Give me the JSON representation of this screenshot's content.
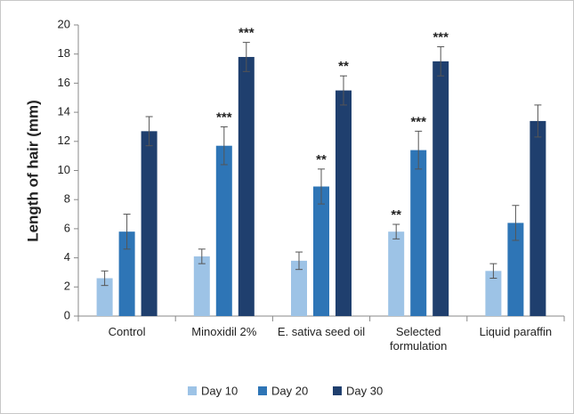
{
  "chart_data": {
    "type": "bar",
    "y_label": "Length of hair (mm)",
    "categories": [
      "Control",
      "Minoxidil 2%",
      "E. sativa seed oil",
      "Selected formulation",
      "Liquid paraffin"
    ],
    "series": [
      {
        "name": "Day 10",
        "color": "#9dc3e6",
        "values": [
          2.6,
          4.1,
          3.8,
          5.8,
          3.1
        ],
        "errors": [
          0.5,
          0.5,
          0.6,
          0.5,
          0.5
        ],
        "annotations": [
          null,
          null,
          null,
          "**",
          null
        ]
      },
      {
        "name": "Day 20",
        "color": "#2e75b6",
        "values": [
          5.8,
          11.7,
          8.9,
          11.4,
          6.4
        ],
        "errors": [
          1.2,
          1.3,
          1.2,
          1.3,
          1.2
        ],
        "annotations": [
          null,
          "***",
          "**",
          "***",
          null
        ]
      },
      {
        "name": "Day 30",
        "color": "#1f3f6e",
        "values": [
          12.7,
          17.8,
          15.5,
          17.5,
          13.4
        ],
        "errors": [
          1.0,
          1.0,
          1.0,
          1.0,
          1.1
        ],
        "annotations": [
          null,
          "***",
          "**",
          "***",
          null
        ]
      }
    ],
    "ylim": [
      0,
      20
    ],
    "yticks": [
      0,
      2,
      4,
      6,
      8,
      10,
      12,
      14,
      16,
      18,
      20
    ],
    "grid": false,
    "legend": "bottom"
  }
}
